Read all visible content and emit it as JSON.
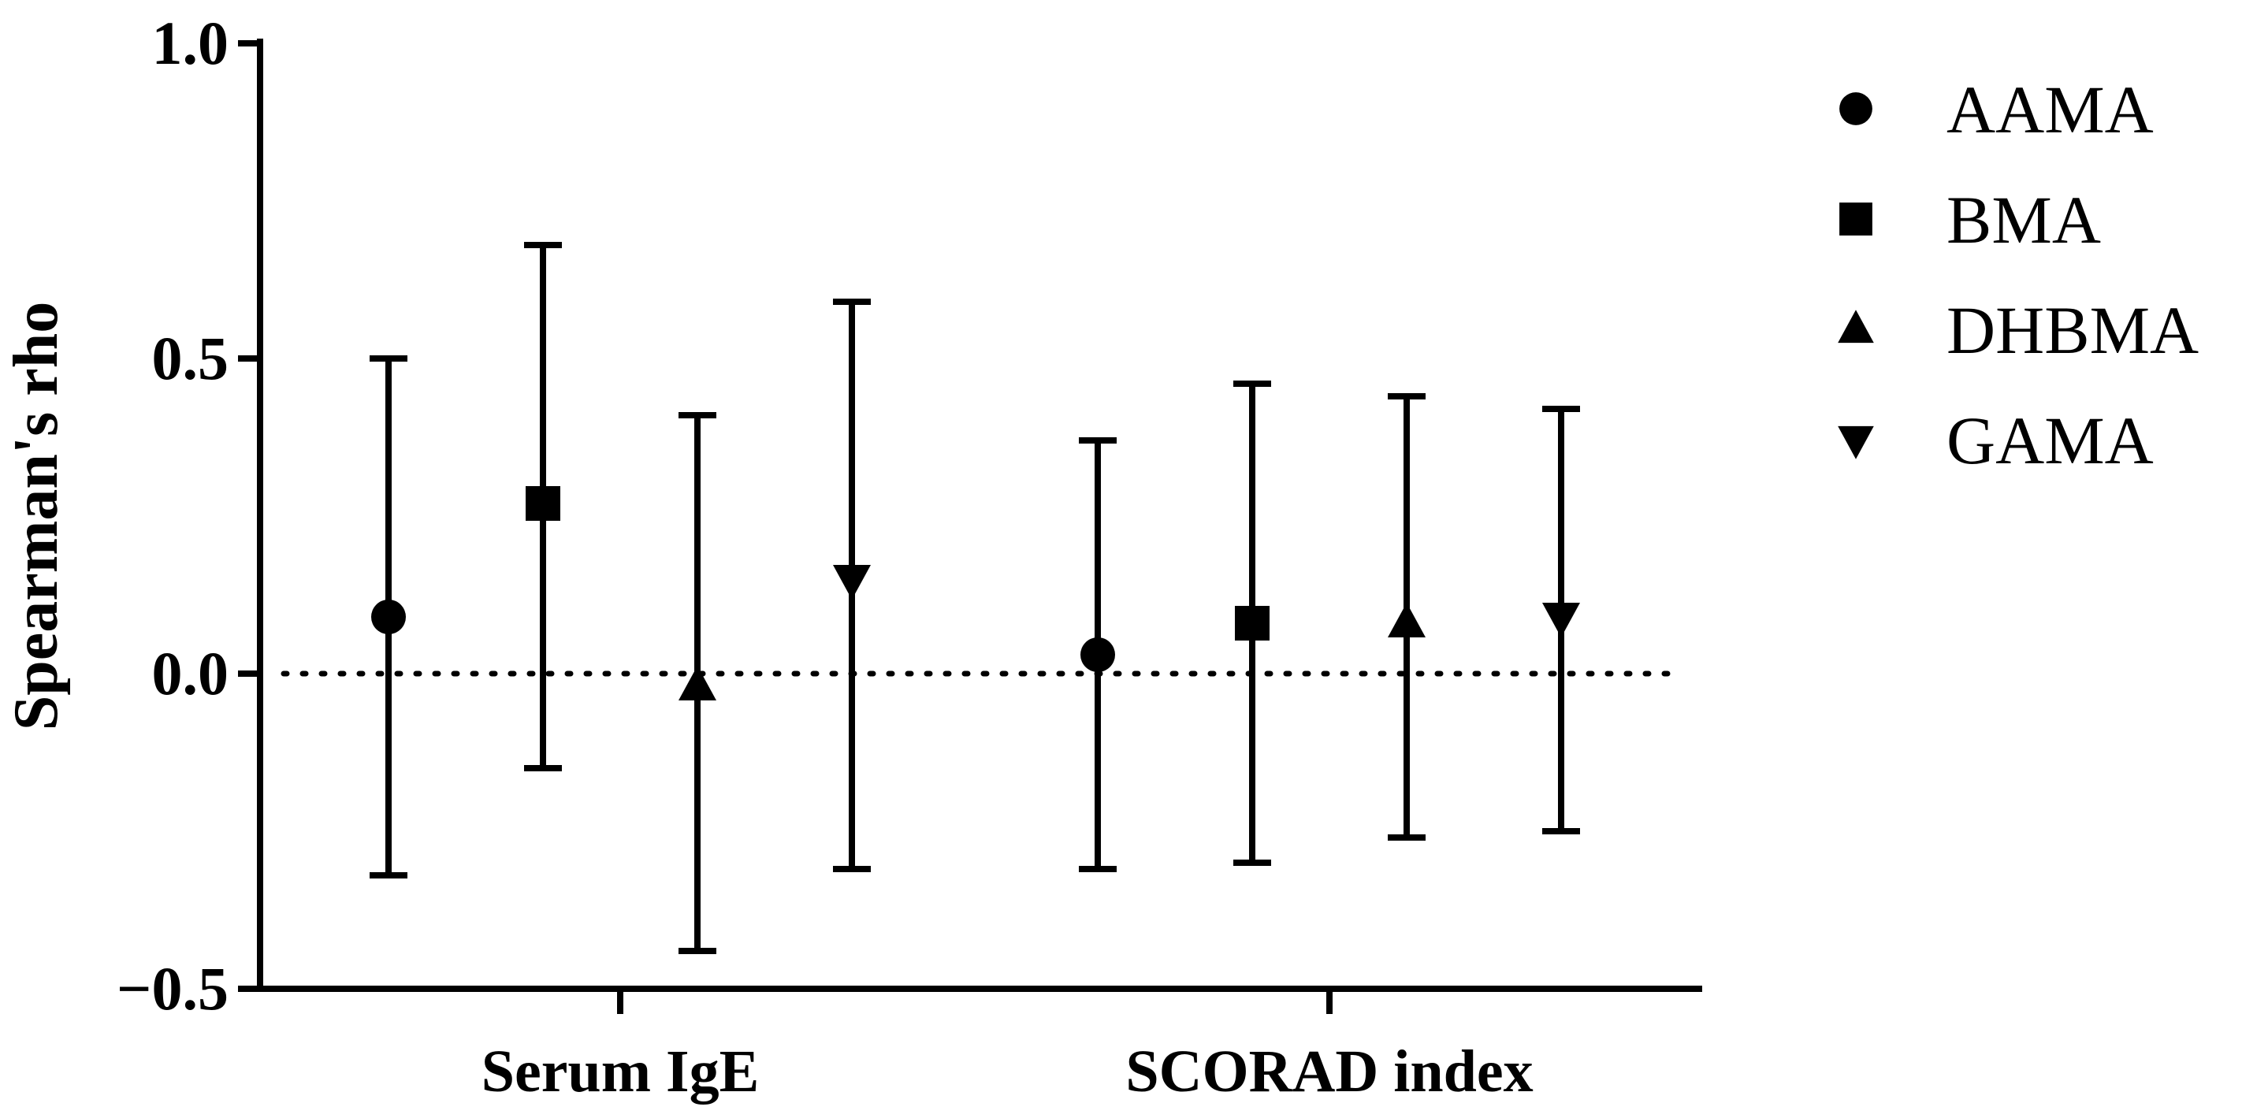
{
  "chart_data": {
    "type": "scatter",
    "ylabel": "Spearman's rho",
    "xlabel": "",
    "ylim": [
      -0.5,
      1.0
    ],
    "yticks": [
      -0.5,
      0.0,
      0.5,
      1.0
    ],
    "ytick_labels": [
      "−0.5",
      "0.0",
      "0.5",
      "1.0"
    ],
    "categories": [
      "Serum IgE",
      "SCORAD index"
    ],
    "reference_line": {
      "y": 0.0,
      "style": "dotted"
    },
    "legend_placement": "top-right",
    "series": [
      {
        "name": "AAMA",
        "marker": "circle",
        "values": [
          0.09,
          0.03
        ],
        "lower": [
          -0.32,
          -0.31
        ],
        "upper": [
          0.5,
          0.37
        ]
      },
      {
        "name": "BMA",
        "marker": "square",
        "values": [
          0.27,
          0.08
        ],
        "lower": [
          -0.15,
          -0.3
        ],
        "upper": [
          0.68,
          0.46
        ]
      },
      {
        "name": "DHBMA",
        "marker": "triangle-up",
        "values": [
          -0.02,
          0.08
        ],
        "lower": [
          -0.44,
          -0.26
        ],
        "upper": [
          0.41,
          0.44
        ]
      },
      {
        "name": "GAMA",
        "marker": "triangle-down",
        "values": [
          0.15,
          0.09
        ],
        "lower": [
          -0.31,
          -0.25
        ],
        "upper": [
          0.59,
          0.42
        ]
      }
    ],
    "colors": {
      "marks": "#000000",
      "background": "#ffffff"
    }
  }
}
